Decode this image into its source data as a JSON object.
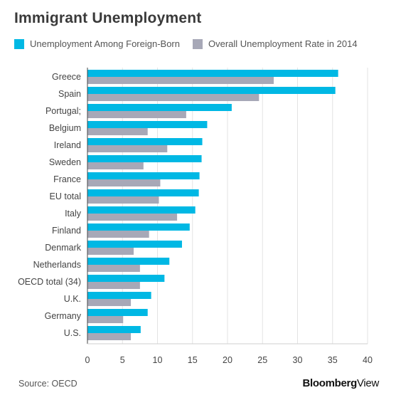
{
  "header": {
    "title": "Immigrant Unemployment"
  },
  "footer": {
    "source": "Source: OECD",
    "brand_bold": "Bloomberg",
    "brand_light": "View"
  },
  "colors": {
    "foreign_born": "#00b8e4",
    "overall": "#a7a8b7",
    "grid": "#e3e3e3",
    "text": "#444444"
  },
  "chart_data": {
    "type": "bar",
    "orientation": "horizontal",
    "categories": [
      "Greece",
      "Spain",
      "Portugal;",
      "Belgium",
      "Ireland",
      "Sweden",
      "France",
      "EU total",
      "Italy",
      "Finland",
      "Denmark",
      "Netherlands",
      "OECD total (34)",
      "U.K.",
      "Germany",
      "U.S."
    ],
    "series": [
      {
        "name": "Unemployment Among Foreign-Born",
        "values": [
          35.8,
          35.4,
          20.6,
          17.1,
          16.4,
          16.3,
          16.0,
          15.9,
          15.4,
          14.6,
          13.5,
          11.7,
          11.0,
          9.1,
          8.6,
          7.6
        ]
      },
      {
        "name": "Overall Unemployment Rate in 2014",
        "values": [
          26.6,
          24.5,
          14.1,
          8.6,
          11.4,
          8.0,
          10.4,
          10.2,
          12.8,
          8.8,
          6.6,
          7.5,
          7.5,
          6.2,
          5.1,
          6.2
        ]
      }
    ],
    "x_ticks": [
      0,
      5,
      10,
      15,
      20,
      25,
      30,
      35,
      40
    ],
    "xlim": [
      0,
      40
    ],
    "grid": true,
    "legend_position": "top-left"
  }
}
